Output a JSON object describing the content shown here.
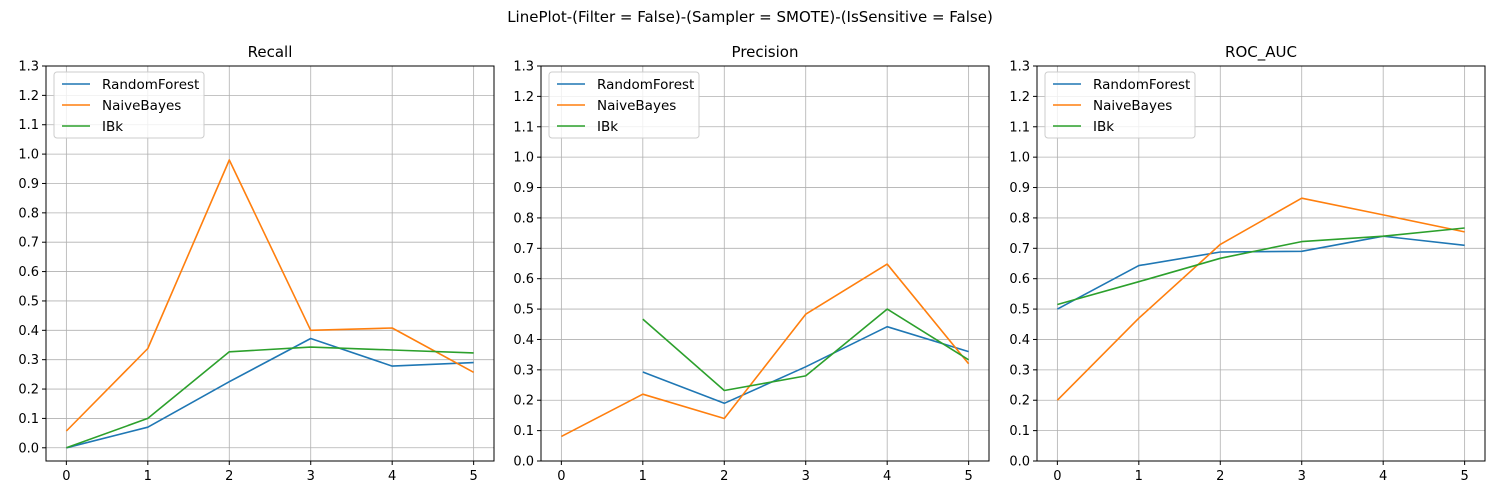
{
  "figure": {
    "suptitle": "LinePlot-(Filter = False)-(Sampler = SMOTE)-(IsSensitive = False)"
  },
  "colors": {
    "RandomForest": "#1f77b4",
    "NaiveBayes": "#ff7f0e",
    "IBk": "#2ca02c",
    "grid": "#b0b0b0"
  },
  "chart_data": [
    {
      "type": "line",
      "title": "Recall",
      "xlabel": "",
      "ylabel": "",
      "x": [
        0,
        1,
        2,
        3,
        4,
        5
      ],
      "xticks": [
        "0",
        "1",
        "2",
        "3",
        "4",
        "5"
      ],
      "xlim": [
        -0.25,
        5.25
      ],
      "yticks": [
        "0.0",
        "0.1",
        "0.2",
        "0.3",
        "0.4",
        "0.5",
        "0.6",
        "0.7",
        "0.8",
        "0.9",
        "1.0",
        "1.1",
        "1.2",
        "1.3"
      ],
      "ylim": [
        -0.045,
        1.3
      ],
      "grid": true,
      "legend": "upper left",
      "series": [
        {
          "name": "RandomForest",
          "values": [
            0.0,
            0.07,
            0.225,
            0.372,
            0.278,
            0.29
          ]
        },
        {
          "name": "NaiveBayes",
          "values": [
            0.057,
            0.338,
            0.98,
            0.4,
            0.408,
            0.257
          ]
        },
        {
          "name": "IBk",
          "values": [
            0.0,
            0.1,
            0.327,
            0.343,
            0.333,
            0.323
          ]
        }
      ]
    },
    {
      "type": "line",
      "title": "Precision",
      "xlabel": "",
      "ylabel": "",
      "x": [
        0,
        1,
        2,
        3,
        4,
        5
      ],
      "xticks": [
        "0",
        "1",
        "2",
        "3",
        "4",
        "5"
      ],
      "xlim": [
        -0.25,
        5.25
      ],
      "yticks": [
        "0.0",
        "0.1",
        "0.2",
        "0.3",
        "0.4",
        "0.5",
        "0.6",
        "0.7",
        "0.8",
        "0.9",
        "1.0",
        "1.1",
        "1.2",
        "1.3"
      ],
      "ylim": [
        0.0,
        1.3
      ],
      "grid": true,
      "legend": "upper left",
      "series": [
        {
          "name": "RandomForest",
          "values": [
            null,
            0.293,
            0.19,
            0.31,
            0.442,
            0.36
          ]
        },
        {
          "name": "NaiveBayes",
          "values": [
            0.081,
            0.22,
            0.14,
            0.483,
            0.648,
            0.32
          ]
        },
        {
          "name": "IBk",
          "values": [
            null,
            0.467,
            0.232,
            0.28,
            0.5,
            0.333
          ]
        }
      ]
    },
    {
      "type": "line",
      "title": "ROC_AUC",
      "xlabel": "",
      "ylabel": "",
      "x": [
        0,
        1,
        2,
        3,
        4,
        5
      ],
      "xticks": [
        "0",
        "1",
        "2",
        "3",
        "4",
        "5"
      ],
      "xlim": [
        -0.25,
        5.25
      ],
      "yticks": [
        "0.0",
        "0.1",
        "0.2",
        "0.3",
        "0.4",
        "0.5",
        "0.6",
        "0.7",
        "0.8",
        "0.9",
        "1.0",
        "1.1",
        "1.2",
        "1.3"
      ],
      "ylim": [
        0.0,
        1.3
      ],
      "grid": true,
      "legend": "upper left",
      "series": [
        {
          "name": "RandomForest",
          "values": [
            0.5,
            0.643,
            0.688,
            0.69,
            0.74,
            0.71
          ]
        },
        {
          "name": "NaiveBayes",
          "values": [
            0.2,
            0.47,
            0.713,
            0.865,
            0.81,
            0.754
          ]
        },
        {
          "name": "IBk",
          "values": [
            0.515,
            0.59,
            0.667,
            0.722,
            0.74,
            0.767
          ]
        }
      ]
    }
  ]
}
